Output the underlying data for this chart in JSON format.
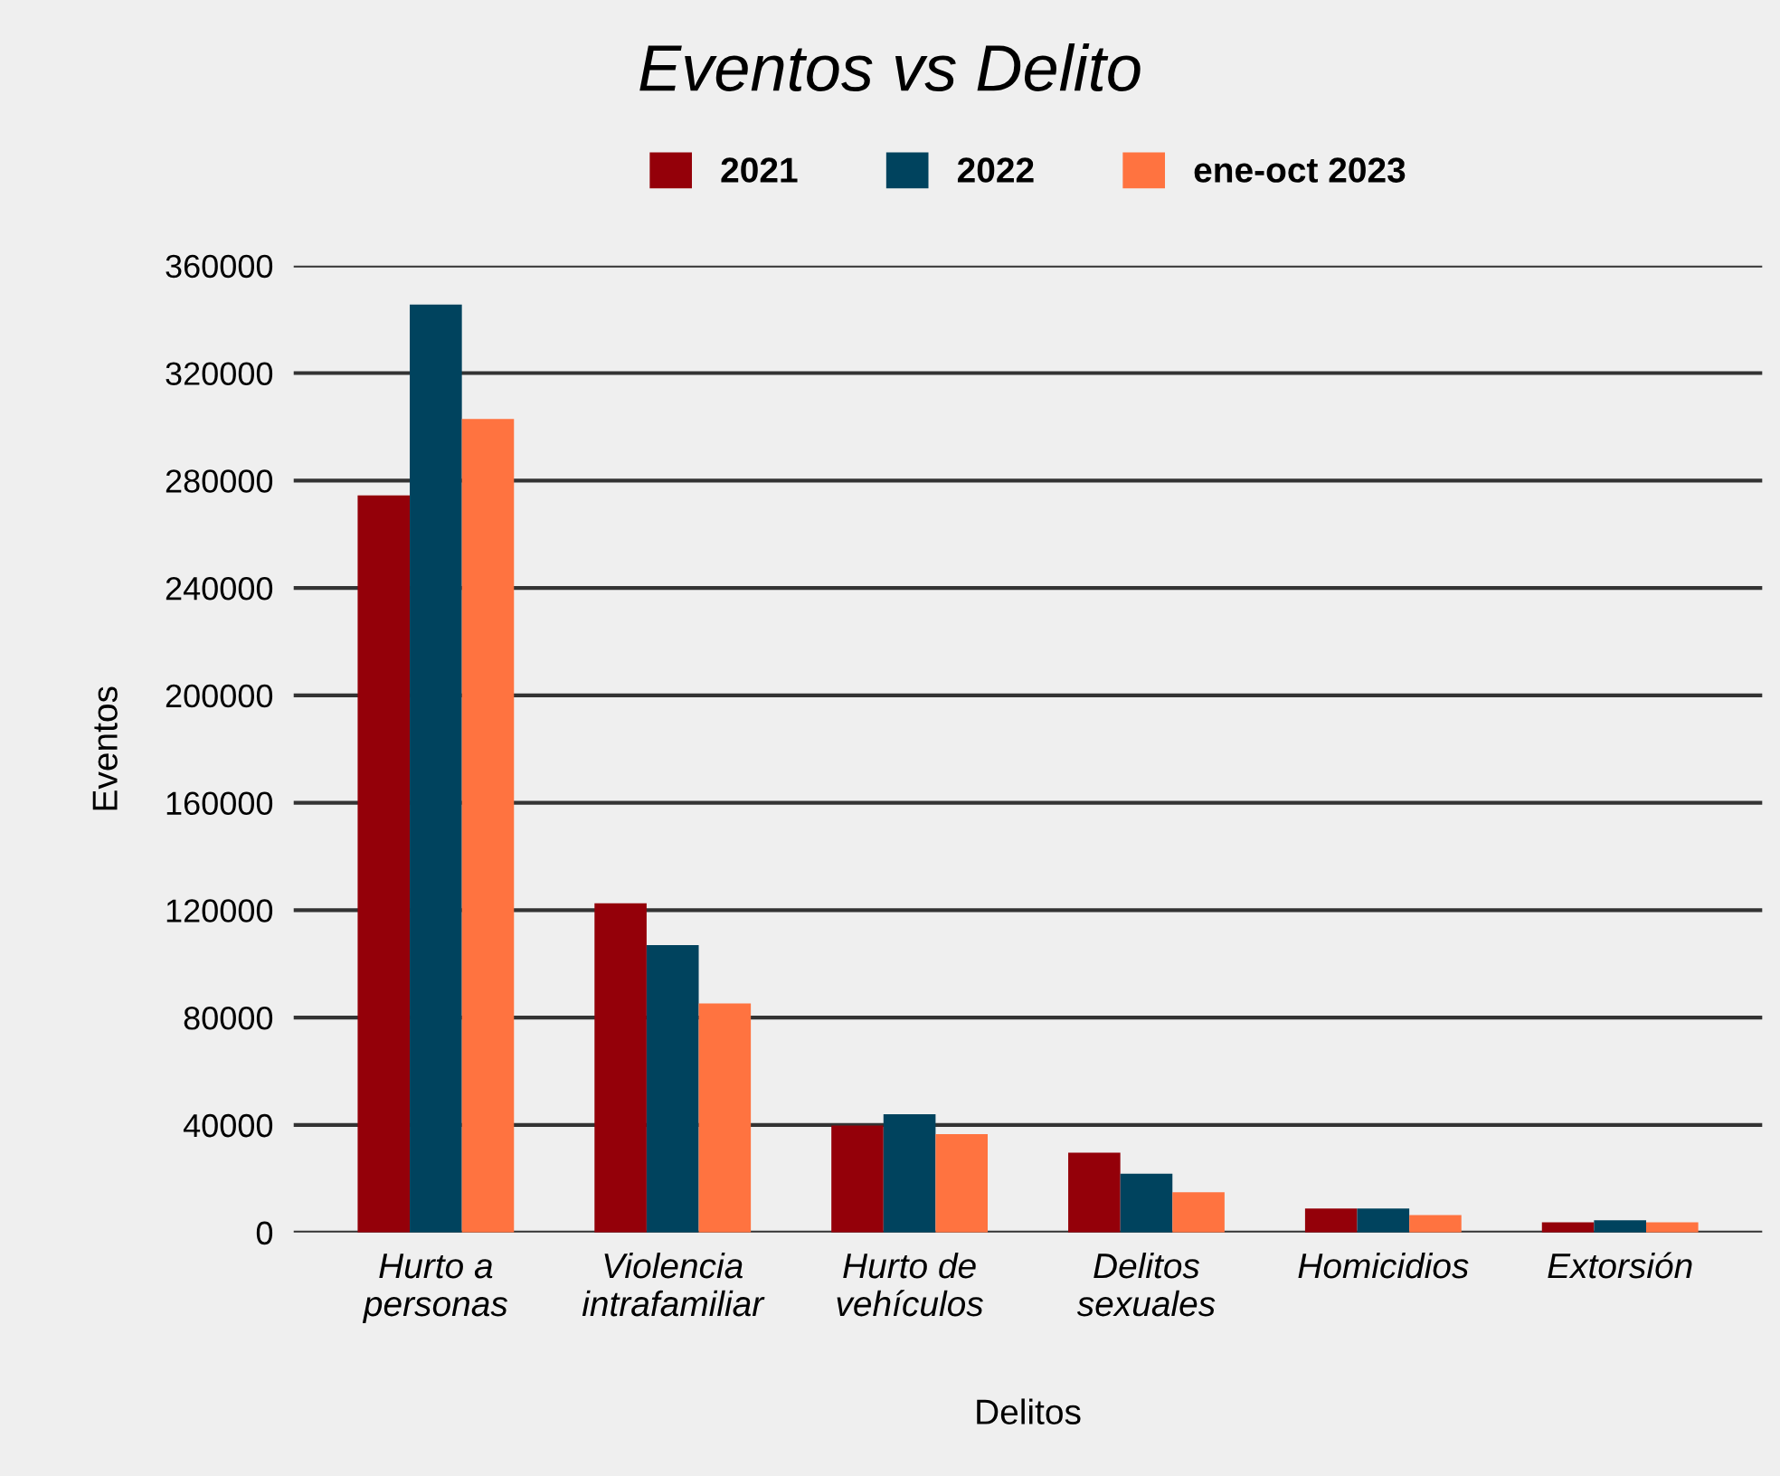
{
  "chart_data": {
    "type": "bar",
    "title": "Eventos vs Delito",
    "xlabel": "Delitos",
    "ylabel": "Eventos",
    "categories": [
      "Hurto a\npersonas",
      "Violencia\nintrafamiliar",
      "Hurto de\nvehículos",
      "Delitos\nsexuales",
      "Homicidios",
      "Extorsión"
    ],
    "series": [
      {
        "name": "2021",
        "color": "#940009",
        "values": [
          274500,
          122600,
          39800,
          29700,
          8900,
          3800
        ]
      },
      {
        "name": "2022",
        "color": "#00435e",
        "values": [
          345500,
          107000,
          44000,
          21900,
          8900,
          4500
        ]
      },
      {
        "name": "ene-oct 2023",
        "color": "#ff7340",
        "values": [
          302900,
          85300,
          36600,
          15000,
          6500,
          3800
        ]
      }
    ],
    "ylim": [
      0,
      360000
    ],
    "yticks": [
      0,
      40000,
      80000,
      120000,
      160000,
      200000,
      240000,
      280000,
      320000,
      360000
    ],
    "grid": "y",
    "legend": "top"
  }
}
